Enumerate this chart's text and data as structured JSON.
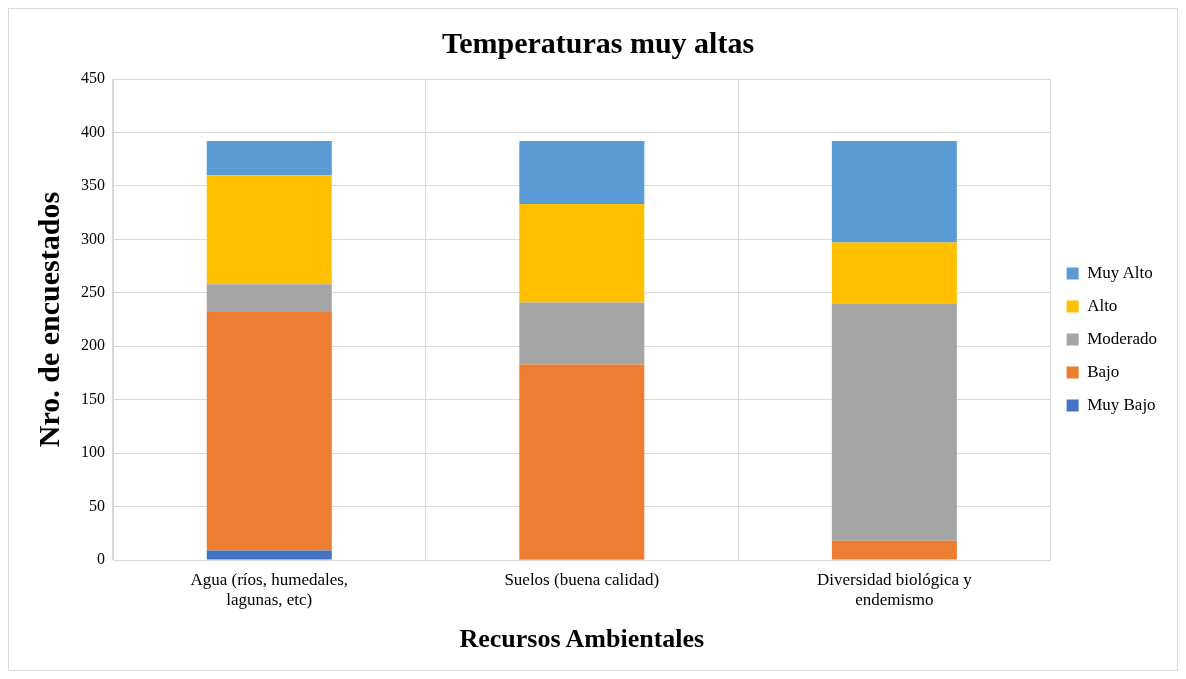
{
  "chart_data": {
    "type": "bar",
    "title": "Temperaturas muy altas",
    "xlabel": "Recursos Ambientales",
    "ylabel": "Nro. de encuestados",
    "categories": [
      "Agua (ríos, humedales, lagunas, etc)",
      "Suelos (buena calidad)",
      "Diversidad biológica y endemismo"
    ],
    "series": [
      {
        "name": "Muy Bajo",
        "color": "#4472c4",
        "values": [
          9,
          1,
          0
        ]
      },
      {
        "name": "Bajo",
        "color": "#ed7d31",
        "values": [
          223,
          182,
          18
        ]
      },
      {
        "name": "Moderado",
        "color": "#a5a5a5",
        "values": [
          26,
          58,
          222
        ]
      },
      {
        "name": "Alto",
        "color": "#ffc000",
        "values": [
          102,
          92,
          57
        ]
      },
      {
        "name": "Muy Alto",
        "color": "#5b9bd5",
        "values": [
          32,
          59,
          95
        ]
      }
    ],
    "stacked": true,
    "ylim": [
      0,
      450
    ],
    "yticks": [
      0,
      50,
      100,
      150,
      200,
      250,
      300,
      350,
      400,
      450
    ],
    "grid": true,
    "legend": "right"
  }
}
